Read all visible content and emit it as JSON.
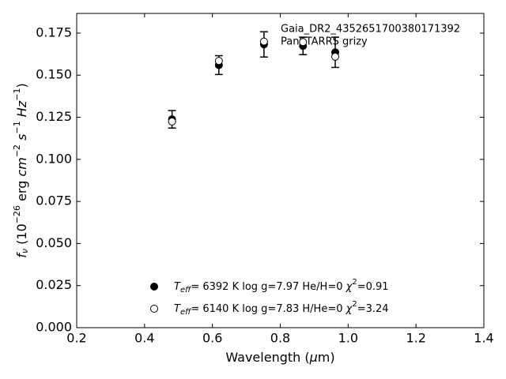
{
  "chart_data": {
    "type": "scatter",
    "annotations": [
      "Gaia_DR2_4352651700380171392",
      "PanSTARRS grizy"
    ],
    "x_label": [
      "Wavelength (",
      "μ",
      "m)"
    ],
    "y_label": [
      "f",
      "ν",
      " (10",
      "−26",
      " erg ",
      "cm",
      "−2",
      " ",
      "s",
      "−1",
      " ",
      "Hz",
      "−1",
      ")"
    ],
    "xlim": [
      0.2,
      1.4
    ],
    "ylim": [
      0,
      0.1867
    ],
    "xticks": [
      0.2,
      0.4,
      0.6,
      0.8,
      {
        "value": 1,
        "label": "1.0"
      },
      1.2,
      1.4
    ],
    "yticks": [
      {
        "value": 0,
        "label": "0.000"
      },
      {
        "value": 0.025,
        "label": "0.025"
      },
      {
        "value": 0.05,
        "label": "0.050"
      },
      {
        "value": 0.075,
        "label": "0.075"
      },
      {
        "value": 0.1,
        "label": "0.100"
      },
      {
        "value": 0.125,
        "label": "0.125"
      },
      {
        "value": 0.15,
        "label": "0.150"
      },
      {
        "value": 0.175,
        "label": "0.175"
      }
    ],
    "series": [
      {
        "name": [
          "T",
          "eff",
          "=  6392 K  log g=7.97  He/H=0  ",
          "χ",
          "2",
          "=0.91"
        ],
        "color": "#000000",
        "marker": "filled",
        "x": [
          0.481,
          0.619,
          0.752,
          0.867,
          0.962
        ],
        "values": [
          0.1238,
          0.156,
          0.1683,
          0.1674,
          0.1636
        ],
        "errors": [
          0.0052,
          0.0056,
          0.0075,
          0.0052,
          0.009
        ]
      },
      {
        "name": [
          "T",
          "eff",
          "=  6140 K  log g=7.83  H/He=0  ",
          "χ",
          "2",
          "=3.24"
        ],
        "color": "#000000",
        "marker": "open",
        "x": [
          0.481,
          0.619,
          0.752,
          0.867,
          0.962
        ],
        "values": [
          0.1225,
          0.1585,
          0.17,
          0.1697,
          0.161
        ]
      }
    ]
  }
}
